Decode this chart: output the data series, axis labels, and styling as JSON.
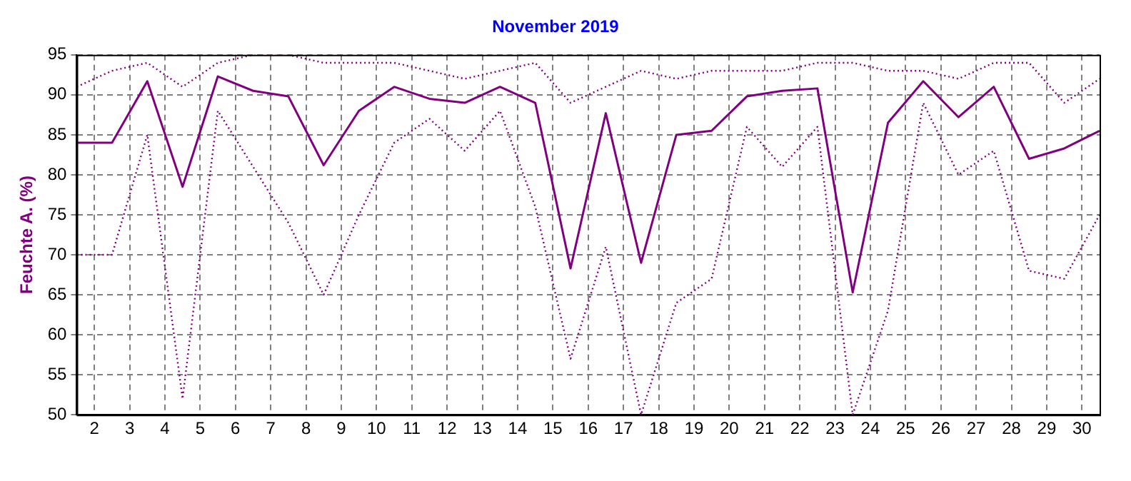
{
  "chart_data": {
    "type": "line",
    "title": "November 2019",
    "ylabel": "Feuchte A. (%)",
    "x": [
      1.5,
      2.5,
      3.5,
      4.5,
      5.5,
      6.5,
      7.5,
      8.5,
      9.5,
      10.5,
      11.5,
      12.5,
      13.5,
      14.5,
      15.5,
      16.5,
      17.5,
      18.5,
      19.5,
      20.5,
      21.5,
      22.5,
      23.5,
      24.5,
      25.5,
      26.5,
      27.5,
      28.5,
      29.5,
      30.5
    ],
    "series": [
      {
        "color": "#800080",
        "line_style": "dotted",
        "values": [
          91,
          93,
          94,
          91,
          94,
          95,
          95,
          94,
          94,
          94,
          93,
          92,
          93,
          94,
          89,
          91,
          93,
          92,
          93,
          93,
          93,
          94,
          94,
          93,
          93,
          92,
          94,
          94,
          89,
          92
        ]
      },
      {
        "color": "#800080",
        "line_style": "solid",
        "values": [
          84,
          84,
          91.7,
          78.5,
          92.3,
          90.5,
          89.8,
          81.2,
          88,
          91,
          89.5,
          89,
          91,
          89,
          68.3,
          87.7,
          69,
          85,
          85.5,
          89.8,
          90.5,
          90.8,
          65.3,
          86.5,
          91.7,
          87.2,
          91,
          82,
          83.3,
          85.5
        ]
      },
      {
        "color": "#800080",
        "line_style": "dotted",
        "values": [
          70,
          70,
          85,
          52,
          88,
          81,
          74,
          65,
          75,
          84,
          87,
          83,
          88,
          76,
          57,
          71,
          50,
          64,
          67,
          86,
          81,
          86,
          50,
          63,
          89,
          80,
          83,
          68,
          67,
          75
        ]
      }
    ],
    "xlim": [
      1.5,
      30.5
    ],
    "xticks": [
      2,
      3,
      4,
      5,
      6,
      7,
      8,
      9,
      10,
      11,
      12,
      13,
      14,
      15,
      16,
      17,
      18,
      19,
      20,
      21,
      22,
      23,
      24,
      25,
      26,
      27,
      28,
      29,
      30
    ],
    "ylim": [
      50,
      95
    ],
    "yticks": [
      50,
      55,
      60,
      65,
      70,
      75,
      80,
      85,
      90,
      95
    ],
    "grid": true,
    "legend": false,
    "marker": "none"
  }
}
